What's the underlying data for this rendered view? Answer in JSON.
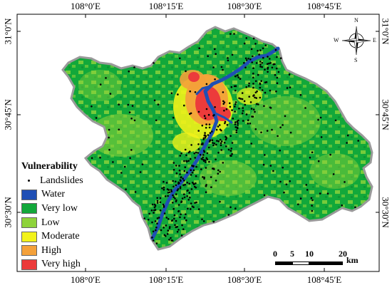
{
  "axes": {
    "top_ticks": [
      "108°0′E",
      "108°15′E",
      "108°30′E",
      "108°45′E"
    ],
    "bottom_ticks": [
      "108°0′E",
      "108°15′E",
      "108°30′E",
      "108°45′E"
    ],
    "left_ticks": [
      "31°0′N",
      "30°45′N",
      "30°30′N"
    ],
    "right_ticks": [
      "31°0′N",
      "30°45′N",
      "30°30′N"
    ]
  },
  "legend": {
    "title": "Vulnerability",
    "items": [
      {
        "label": "Landslides",
        "kind": "dot",
        "color": "#000000"
      },
      {
        "label": "Water",
        "kind": "swatch",
        "color": "#1f4fb5"
      },
      {
        "label": "Very low",
        "kind": "swatch",
        "color": "#12a83a"
      },
      {
        "label": "Low",
        "kind": "swatch",
        "color": "#8ed33b"
      },
      {
        "label": "Moderate",
        "kind": "swatch",
        "color": "#f2f21a"
      },
      {
        "label": "High",
        "kind": "swatch",
        "color": "#f4a13a"
      },
      {
        "label": "Very high",
        "kind": "swatch",
        "color": "#ec3b3b"
      }
    ]
  },
  "scale_bar": {
    "labels": [
      "0",
      "5",
      "10",
      "20"
    ],
    "unit": "km"
  },
  "compass": {
    "icon": "north-arrow-compass-icon",
    "letters": {
      "north": "N",
      "south": "S",
      "east": "E",
      "west": "W"
    }
  }
}
